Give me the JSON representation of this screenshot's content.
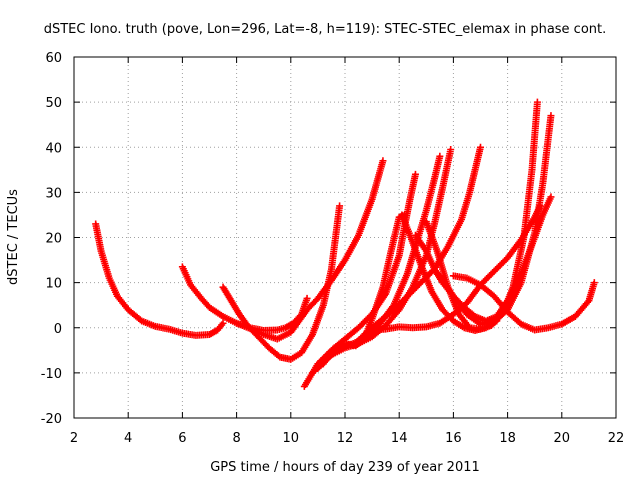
{
  "chart_data": {
    "type": "scatter",
    "title": "dSTEC Iono. truth (pove, Lon=296, Lat=-8, h=119): STEC-STEC_elemax in phase cont.",
    "xlabel": "GPS time / hours of day 239 of year 2011",
    "ylabel": "dSTEC  / TECUs",
    "xlim": [
      2,
      22
    ],
    "ylim": [
      -20,
      60
    ],
    "xticks": [
      "2",
      "4",
      "6",
      "8",
      "10",
      "12",
      "14",
      "16",
      "18",
      "20",
      "22"
    ],
    "yticks": [
      "-20",
      "-10",
      "0",
      "10",
      "20",
      "30",
      "40",
      "50",
      "60"
    ],
    "grid": true,
    "marker": "+",
    "color": "#ff0000",
    "series": [
      {
        "x": [
          2.8,
          3.0,
          3.3,
          3.6,
          4.0,
          4.5,
          5.0,
          5.5,
          6.0,
          6.5,
          7.0,
          7.3,
          7.5
        ],
        "y": [
          23,
          17,
          11,
          7,
          4,
          1.5,
          0.3,
          -0.3,
          -1.2,
          -1.7,
          -1.5,
          -0.5,
          1
        ]
      },
      {
        "x": [
          6.0,
          6.3,
          6.7,
          7.0,
          7.5,
          8.0,
          8.5,
          9.0,
          9.5,
          9.8,
          10.1,
          10.4,
          10.6
        ],
        "y": [
          13.5,
          9.5,
          6.5,
          4.5,
          2.5,
          1.0,
          0.0,
          -0.6,
          -0.5,
          0.0,
          1.0,
          3.0,
          6.5
        ]
      },
      {
        "x": [
          7.5,
          7.8,
          8.1,
          8.4,
          8.8,
          9.2,
          9.6,
          10.0,
          10.4,
          10.8,
          11.2,
          11.5,
          11.8
        ],
        "y": [
          9,
          6,
          3,
          0.5,
          -2,
          -4.5,
          -6.5,
          -7,
          -5.5,
          -1.5,
          5,
          13,
          27
        ]
      },
      {
        "x": [
          8.0,
          8.5,
          9.0,
          9.5,
          10.0,
          10.3,
          10.6,
          11.0,
          11.5,
          12.0,
          12.5,
          13.0,
          13.4
        ],
        "y": [
          1,
          -0.2,
          -1.5,
          -2.5,
          -1,
          1.5,
          4,
          6.5,
          10.5,
          15,
          20.5,
          28.5,
          37
        ]
      },
      {
        "x": [
          10.5,
          11.0,
          11.5,
          12.0,
          12.5,
          13.0,
          13.5,
          14.0,
          14.2,
          14.4,
          14.6
        ],
        "y": [
          -13,
          -8,
          -5,
          -2.5,
          0,
          3,
          7.5,
          16,
          22.5,
          28.5,
          34
        ]
      },
      {
        "x": [
          10.8,
          11.3,
          11.8,
          12.3,
          12.8,
          13.3,
          13.8,
          14.3,
          14.7,
          15.0,
          15.3,
          15.5
        ],
        "y": [
          -10,
          -7,
          -4.5,
          -3.5,
          -2,
          1,
          5,
          12,
          20,
          26,
          33,
          38
        ]
      },
      {
        "x": [
          11.0,
          11.5,
          12.0,
          12.5,
          13.0,
          13.5,
          14.0,
          14.5,
          15.0,
          15.3,
          15.6,
          15.9
        ],
        "y": [
          -9,
          -6,
          -4.5,
          -3.5,
          -2,
          0.5,
          4,
          9,
          16,
          23,
          31,
          39.5
        ]
      },
      {
        "x": [
          11.2,
          11.6,
          12.0,
          12.4,
          12.7,
          13.0,
          13.4,
          13.7,
          14.0,
          14.2
        ],
        "y": [
          -8,
          -4.5,
          -3.5,
          -4,
          -2.5,
          2,
          9,
          17,
          24.5,
          25
        ]
      },
      {
        "x": [
          12.3,
          12.8,
          13.3,
          13.8,
          14.3,
          14.8,
          15.3,
          15.8,
          16.3,
          16.6,
          16.8,
          17.0
        ],
        "y": [
          -4,
          -1,
          1.5,
          4,
          7,
          10,
          13,
          18,
          24,
          30,
          35,
          40
        ]
      },
      {
        "x": [
          13.0,
          13.5,
          14.0,
          14.5,
          15.0,
          15.5,
          16.0,
          16.5,
          17.0,
          17.5,
          18.0,
          18.5,
          19.0,
          19.2
        ],
        "y": [
          -0.5,
          -0.3,
          0.2,
          0.0,
          0.2,
          1.0,
          3.0,
          5.5,
          9.5,
          12.5,
          15.5,
          19.5,
          24.5,
          27
        ]
      },
      {
        "x": [
          14.1,
          14.4,
          14.8,
          15.2,
          15.6,
          16.0,
          16.4,
          16.8,
          17.2,
          17.6
        ],
        "y": [
          25,
          20.5,
          14,
          8,
          4,
          1.5,
          0.0,
          -0.6,
          0.0,
          1.5
        ]
      },
      {
        "x": [
          14.6,
          15.0,
          15.3,
          15.6,
          16.0,
          16.4,
          16.8,
          17.2,
          17.6,
          18.0,
          18.5,
          19.0,
          19.3,
          19.6
        ],
        "y": [
          20.5,
          17,
          13,
          10,
          7,
          4.5,
          2.5,
          1.5,
          2.5,
          6,
          12,
          20,
          25,
          29
        ]
      },
      {
        "x": [
          15.0,
          15.4,
          15.8,
          16.2,
          16.6,
          17.0,
          17.4,
          17.8,
          18.2,
          18.6,
          18.9,
          19.1
        ],
        "y": [
          23.5,
          17,
          9,
          3,
          0.0,
          -0.3,
          0.5,
          3,
          9,
          20,
          35,
          50
        ]
      },
      {
        "x": [
          15.5,
          16.0,
          16.5,
          17.0,
          17.5,
          18.0,
          18.5,
          19.0,
          19.3,
          19.6
        ],
        "y": [
          11.5,
          7,
          3,
          0.8,
          1.5,
          4,
          10,
          21,
          32,
          47
        ]
      },
      {
        "x": [
          16.0,
          16.5,
          17.0,
          17.5,
          18.0,
          18.5,
          19.0,
          19.5,
          20.0,
          20.5,
          21.0,
          21.2
        ],
        "y": [
          11.5,
          11,
          9.5,
          7,
          3.5,
          0.8,
          -0.5,
          0.0,
          0.8,
          2.5,
          6,
          10
        ]
      }
    ]
  }
}
